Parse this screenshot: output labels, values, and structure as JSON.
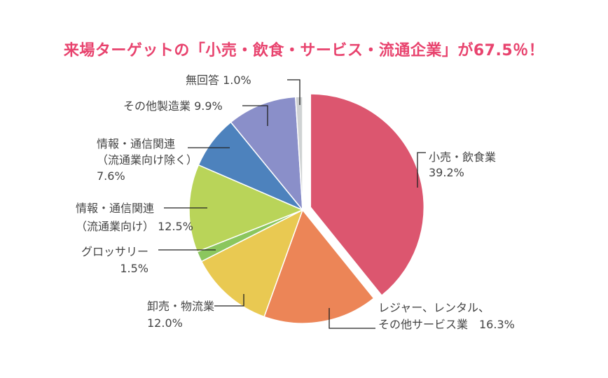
{
  "chart_data": {
    "type": "pie",
    "title": "来場ターゲットの「小売・飲食・サービス・流通企業」が67.5％！",
    "categories": [
      "小売・飲食業",
      "レジャー、レンタル、その他サービス業",
      "卸売・物流業",
      "グロッサリー",
      "情報・通信関連（流通業向け）",
      "情報・通信関連（流通業向け除く）",
      "その他製造業",
      "無回答"
    ],
    "values": [
      39.2,
      16.3,
      12.0,
      1.5,
      12.5,
      7.6,
      9.9,
      1.0
    ],
    "unit": "%",
    "colors": [
      "#dc566f",
      "#ec8557",
      "#e9c952",
      "#8bc65e",
      "#b9d459",
      "#4d82bd",
      "#8a8fc9",
      "#cfd2d3"
    ],
    "exploded_slice": "小売・飲食業",
    "slice_labels": [
      {
        "lines": [
          "小売・飲食業",
          "39.2%"
        ]
      },
      {
        "lines": [
          "レジャー、レンタル、",
          "その他サービス業　16.3%"
        ]
      },
      {
        "lines": [
          "卸売・物流業",
          "12.0%"
        ]
      },
      {
        "lines": [
          "グロッサリー",
          "1.5%"
        ]
      },
      {
        "lines": [
          "情報・通信関連",
          "（流通業向け）  12.5%"
        ]
      },
      {
        "lines": [
          "情報・通信関連",
          "（流通業向け除く）",
          "7.6%"
        ]
      },
      {
        "lines": [
          "その他製造業  9.9%"
        ]
      },
      {
        "lines": [
          "無回答  1.0%"
        ]
      }
    ]
  }
}
